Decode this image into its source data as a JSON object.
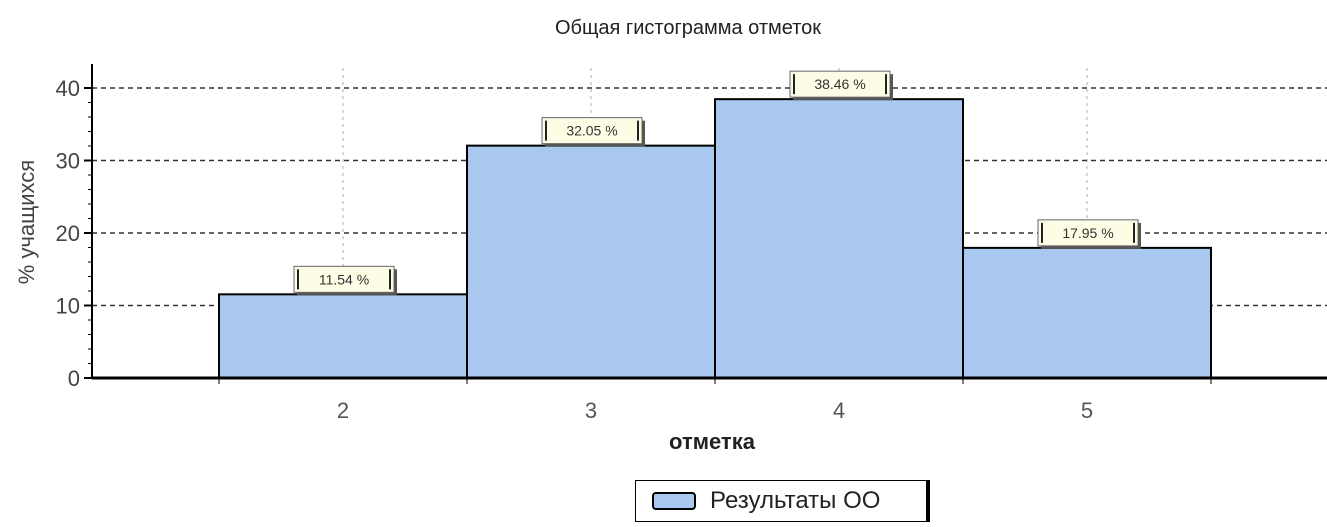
{
  "chart_data": {
    "type": "bar",
    "title": "Общая гистограмма отметок",
    "xlabel": "отметка",
    "ylabel": "% учащихся",
    "categories": [
      "2",
      "3",
      "4",
      "5"
    ],
    "series": [
      {
        "name": "Результаты ОО",
        "values": [
          11.54,
          32.05,
          38.46,
          17.95
        ],
        "labels": [
          "11.54 %",
          "32.05 %",
          "38.46 %",
          "17.95 %"
        ],
        "color": "#a9c8ef"
      }
    ],
    "ylim": [
      0,
      40
    ],
    "yticks": [
      "0",
      "10",
      "20",
      "30",
      "40"
    ],
    "grid": true,
    "legend_position": "bottom"
  }
}
